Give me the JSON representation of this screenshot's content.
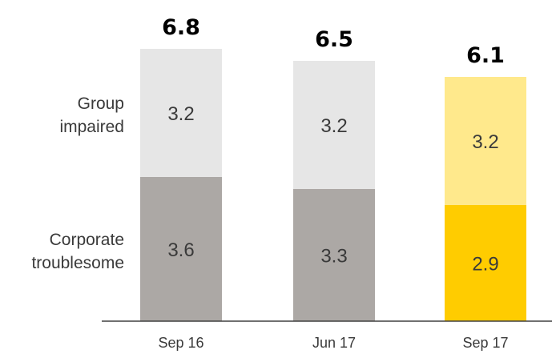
{
  "chart_data": {
    "type": "bar",
    "stacked": true,
    "categories": [
      "Sep 16",
      "Jun 17",
      "Sep 17"
    ],
    "series": [
      {
        "name": "Corporate troublesome",
        "label_lines": [
          "Corporate",
          "troublesome"
        ],
        "values": [
          3.6,
          3.3,
          2.9
        ],
        "colors": [
          "#aca8a5",
          "#aca8a5",
          "#ffcc00"
        ]
      },
      {
        "name": "Group impaired",
        "label_lines": [
          "Group",
          "impaired"
        ],
        "values": [
          3.2,
          3.2,
          3.2
        ],
        "colors": [
          "#e6e6e6",
          "#e6e6e6",
          "#ffe98c"
        ]
      }
    ],
    "totals": [
      "6.8",
      "6.5",
      "6.1"
    ],
    "value_labels": [
      [
        "3.6",
        "3.3",
        "2.9"
      ],
      [
        "3.2",
        "3.2",
        "3.2"
      ]
    ],
    "legend_placement": "left",
    "grid": false,
    "title": "",
    "xlabel": "",
    "ylabel": ""
  }
}
